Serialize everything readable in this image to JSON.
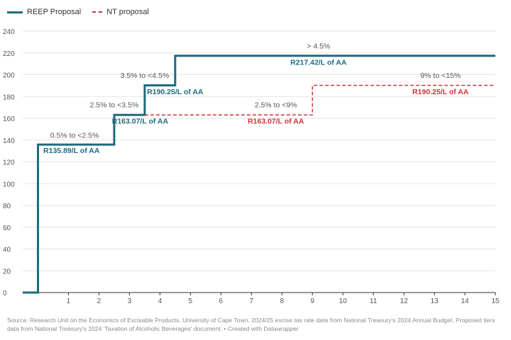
{
  "chart_data": {
    "type": "line",
    "xlim": [
      -0.5,
      15
    ],
    "ylim": [
      0,
      240
    ],
    "x_ticks": [
      1,
      2,
      3,
      4,
      5,
      6,
      7,
      8,
      9,
      10,
      11,
      12,
      13,
      14,
      15
    ],
    "y_ticks": [
      0,
      20,
      40,
      60,
      80,
      100,
      120,
      140,
      160,
      180,
      200,
      220,
      240
    ],
    "series": [
      {
        "name": "REEP Proposal",
        "color": "#1d6b7e",
        "style": "solid",
        "points": [
          [
            -0.5,
            0
          ],
          [
            0,
            0
          ],
          [
            0,
            135.89
          ],
          [
            2.5,
            135.89
          ],
          [
            2.5,
            163.07
          ],
          [
            3.5,
            163.07
          ],
          [
            3.5,
            190.25
          ],
          [
            4.5,
            190.25
          ],
          [
            4.5,
            217.42
          ],
          [
            15,
            217.42
          ]
        ]
      },
      {
        "name": "NT proposal",
        "color": "#d13437",
        "style": "dashed",
        "points": [
          [
            3.5,
            163.07
          ],
          [
            9,
            163.07
          ],
          [
            9,
            190.25
          ],
          [
            15,
            190.25
          ]
        ]
      }
    ],
    "annotations": [
      {
        "text": "0.5% to <2.5%",
        "x": 1.2,
        "y": 142,
        "color": "#555555",
        "bold": false
      },
      {
        "text": "R135.89/L of AA",
        "x": 1.1,
        "y": 128,
        "color": "#1d6b7e",
        "bold": true
      },
      {
        "text": "2.5% to <3.5%",
        "x": 2.5,
        "y": 170,
        "color": "#555555",
        "bold": false
      },
      {
        "text": "R163.07/L of AA",
        "x": 3.35,
        "y": 155,
        "color": "#1d6b7e",
        "bold": true
      },
      {
        "text": "3.5% to <4.5%",
        "x": 3.5,
        "y": 197,
        "color": "#555555",
        "bold": false
      },
      {
        "text": "R190.25/L of AA",
        "x": 4.5,
        "y": 182,
        "color": "#1d6b7e",
        "bold": true
      },
      {
        "text": "> 4.5%",
        "x": 9.2,
        "y": 224,
        "color": "#555555",
        "bold": false
      },
      {
        "text": "R217.42/L of AA",
        "x": 9.2,
        "y": 209,
        "color": "#1d6b7e",
        "bold": true
      },
      {
        "text": "2.5% to <9%",
        "x": 7.8,
        "y": 170,
        "color": "#555555",
        "bold": false
      },
      {
        "text": "R163.07/L of AA",
        "x": 7.8,
        "y": 155,
        "color": "#d13437",
        "bold": true
      },
      {
        "text": "9% to <15%",
        "x": 13.2,
        "y": 197,
        "color": "#555555",
        "bold": false
      },
      {
        "text": "R190.25/L of AA",
        "x": 13.2,
        "y": 182,
        "color": "#d13437",
        "bold": true
      }
    ]
  },
  "legend": {
    "reep_label": "REEP Proposal",
    "nt_label": "NT proposal"
  },
  "source_text": "Source: Research Unit on the Economics of Excisable Products, University of Cape Town, 2024/25 excise tax rate data from National Treasury's 2024 Annual Budget. Proposed tiers data from National Treasury's 2024 'Taxation of Alcoholic Beverages' document. • Created with Datawrapper"
}
